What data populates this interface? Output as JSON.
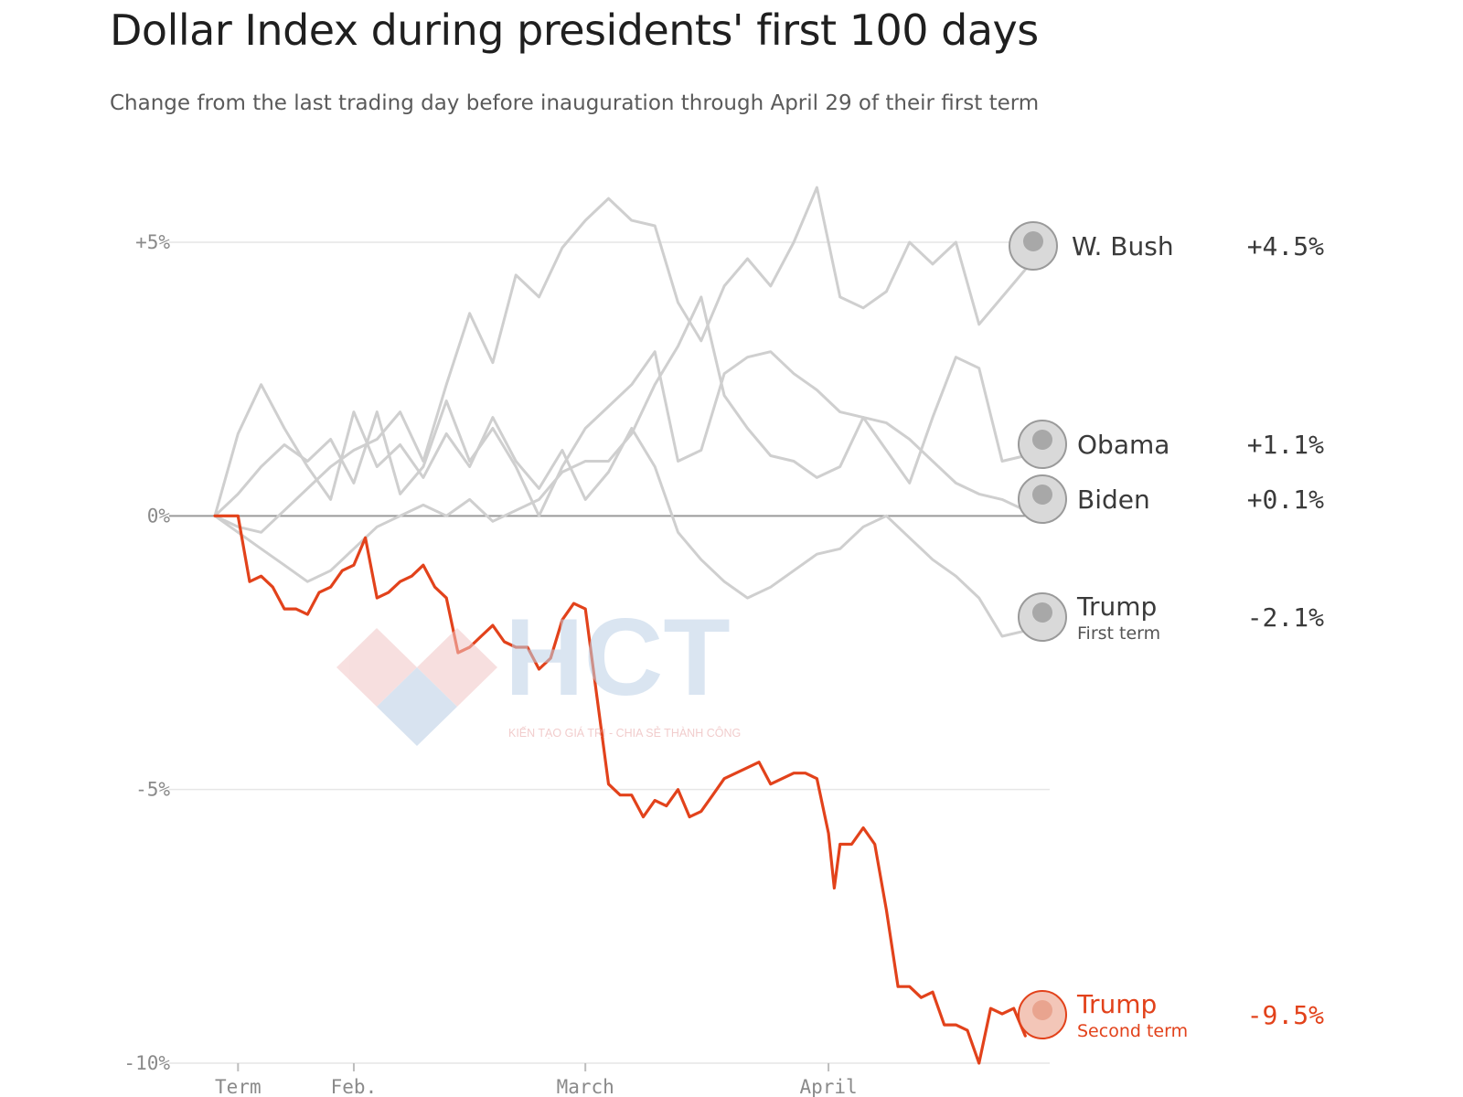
{
  "chart_data": {
    "type": "line",
    "title": "Dollar Index during presidents' first 100 days",
    "subtitle": "Change from the last trading day before inauguration through April 29 of their first term",
    "x_unit": "trading days since inauguration",
    "x_range": [
      -1,
      70
    ],
    "ylim": [
      -10,
      6
    ],
    "y_ticks": [
      {
        "value": 5,
        "label": "+5%"
      },
      {
        "value": 0,
        "label": "0%"
      },
      {
        "value": -5,
        "label": "-5%"
      },
      {
        "value": -10,
        "label": "-10%"
      }
    ],
    "x_ticks": [
      {
        "value": 1,
        "label": "Term"
      },
      {
        "value": 11,
        "label": "Feb."
      },
      {
        "value": 31,
        "label": "March"
      },
      {
        "value": 52,
        "label": "April"
      }
    ],
    "grid": true,
    "series": [
      {
        "name": "W. Bush",
        "sub": "",
        "value_label": "+4.5%",
        "highlight": false,
        "color": "#cfcfcf",
        "points": [
          [
            -1,
            0
          ],
          [
            1,
            -0.2
          ],
          [
            3,
            -0.3
          ],
          [
            5,
            0.1
          ],
          [
            7,
            0.5
          ],
          [
            9,
            0.9
          ],
          [
            11,
            1.2
          ],
          [
            13,
            1.4
          ],
          [
            15,
            1.9
          ],
          [
            17,
            1.0
          ],
          [
            19,
            2.4
          ],
          [
            21,
            3.7
          ],
          [
            23,
            2.8
          ],
          [
            25,
            4.4
          ],
          [
            27,
            4.0
          ],
          [
            29,
            4.9
          ],
          [
            31,
            5.4
          ],
          [
            33,
            5.8
          ],
          [
            35,
            5.4
          ],
          [
            37,
            5.3
          ],
          [
            39,
            3.9
          ],
          [
            41,
            3.2
          ],
          [
            43,
            4.2
          ],
          [
            45,
            4.7
          ],
          [
            47,
            4.2
          ],
          [
            49,
            5.0
          ],
          [
            51,
            6.0
          ],
          [
            53,
            4.0
          ],
          [
            55,
            3.8
          ],
          [
            57,
            4.1
          ],
          [
            59,
            5.0
          ],
          [
            61,
            4.6
          ],
          [
            63,
            5.0
          ],
          [
            65,
            3.5
          ],
          [
            67,
            4.0
          ],
          [
            69,
            4.5
          ]
        ]
      },
      {
        "name": "Obama",
        "sub": "",
        "value_label": "+1.1%",
        "highlight": false,
        "color": "#cfcfcf",
        "points": [
          [
            -1,
            0
          ],
          [
            1,
            0.4
          ],
          [
            3,
            0.9
          ],
          [
            5,
            1.3
          ],
          [
            7,
            1.0
          ],
          [
            9,
            1.4
          ],
          [
            11,
            0.6
          ],
          [
            13,
            1.9
          ],
          [
            15,
            0.4
          ],
          [
            17,
            0.9
          ],
          [
            19,
            2.1
          ],
          [
            21,
            1.0
          ],
          [
            23,
            1.6
          ],
          [
            25,
            0.9
          ],
          [
            27,
            0.0
          ],
          [
            29,
            0.9
          ],
          [
            31,
            1.6
          ],
          [
            33,
            2.0
          ],
          [
            35,
            2.4
          ],
          [
            37,
            3.0
          ],
          [
            39,
            1.0
          ],
          [
            41,
            1.2
          ],
          [
            43,
            2.6
          ],
          [
            45,
            2.9
          ],
          [
            47,
            3.0
          ],
          [
            49,
            2.6
          ],
          [
            51,
            2.3
          ],
          [
            53,
            1.9
          ],
          [
            55,
            1.8
          ],
          [
            57,
            1.2
          ],
          [
            59,
            0.6
          ],
          [
            61,
            1.8
          ],
          [
            63,
            2.9
          ],
          [
            65,
            2.7
          ],
          [
            67,
            1.0
          ],
          [
            69,
            1.1
          ]
        ]
      },
      {
        "name": "Biden",
        "sub": "",
        "value_label": "+0.1%",
        "highlight": false,
        "color": "#cfcfcf",
        "points": [
          [
            -1,
            0
          ],
          [
            1,
            -0.3
          ],
          [
            3,
            -0.6
          ],
          [
            5,
            -0.9
          ],
          [
            7,
            -1.2
          ],
          [
            9,
            -1.0
          ],
          [
            11,
            -0.6
          ],
          [
            13,
            -0.2
          ],
          [
            15,
            0.0
          ],
          [
            17,
            0.2
          ],
          [
            19,
            0.0
          ],
          [
            21,
            0.3
          ],
          [
            23,
            -0.1
          ],
          [
            25,
            0.1
          ],
          [
            27,
            0.3
          ],
          [
            29,
            0.8
          ],
          [
            31,
            1.0
          ],
          [
            33,
            1.0
          ],
          [
            35,
            1.5
          ],
          [
            37,
            2.4
          ],
          [
            39,
            3.1
          ],
          [
            41,
            4.0
          ],
          [
            43,
            2.2
          ],
          [
            45,
            1.6
          ],
          [
            47,
            1.1
          ],
          [
            49,
            1.0
          ],
          [
            51,
            0.7
          ],
          [
            53,
            0.9
          ],
          [
            55,
            1.8
          ],
          [
            57,
            1.7
          ],
          [
            59,
            1.4
          ],
          [
            61,
            1.0
          ],
          [
            63,
            0.6
          ],
          [
            65,
            0.4
          ],
          [
            67,
            0.3
          ],
          [
            69,
            0.1
          ]
        ]
      },
      {
        "name": "Trump",
        "sub": "First term",
        "value_label": "-2.1%",
        "highlight": false,
        "color": "#cfcfcf",
        "points": [
          [
            -1,
            0
          ],
          [
            1,
            1.5
          ],
          [
            3,
            2.4
          ],
          [
            5,
            1.6
          ],
          [
            7,
            0.9
          ],
          [
            9,
            0.3
          ],
          [
            11,
            1.9
          ],
          [
            13,
            0.9
          ],
          [
            15,
            1.3
          ],
          [
            17,
            0.7
          ],
          [
            19,
            1.5
          ],
          [
            21,
            0.9
          ],
          [
            23,
            1.8
          ],
          [
            25,
            1.0
          ],
          [
            27,
            0.5
          ],
          [
            29,
            1.2
          ],
          [
            31,
            0.3
          ],
          [
            33,
            0.8
          ],
          [
            35,
            1.6
          ],
          [
            37,
            0.9
          ],
          [
            39,
            -0.3
          ],
          [
            41,
            -0.8
          ],
          [
            43,
            -1.2
          ],
          [
            45,
            -1.5
          ],
          [
            47,
            -1.3
          ],
          [
            49,
            -1.0
          ],
          [
            51,
            -0.7
          ],
          [
            53,
            -0.6
          ],
          [
            55,
            -0.2
          ],
          [
            57,
            0.0
          ],
          [
            59,
            -0.4
          ],
          [
            61,
            -0.8
          ],
          [
            63,
            -1.1
          ],
          [
            65,
            -1.5
          ],
          [
            67,
            -2.2
          ],
          [
            69,
            -2.1
          ]
        ]
      },
      {
        "name": "Trump",
        "sub": "Second term",
        "value_label": "-9.5%",
        "highlight": true,
        "color": "#e2421b",
        "points": [
          [
            -1,
            0
          ],
          [
            1,
            0.0
          ],
          [
            2,
            -1.2
          ],
          [
            3,
            -1.1
          ],
          [
            4,
            -1.3
          ],
          [
            5,
            -1.7
          ],
          [
            6,
            -1.7
          ],
          [
            7,
            -1.8
          ],
          [
            8,
            -1.4
          ],
          [
            9,
            -1.3
          ],
          [
            10,
            -1.0
          ],
          [
            11,
            -0.9
          ],
          [
            12,
            -0.4
          ],
          [
            13,
            -1.5
          ],
          [
            14,
            -1.4
          ],
          [
            15,
            -1.2
          ],
          [
            16,
            -1.1
          ],
          [
            17,
            -0.9
          ],
          [
            18,
            -1.3
          ],
          [
            19,
            -1.5
          ],
          [
            20,
            -2.5
          ],
          [
            21,
            -2.4
          ],
          [
            22,
            -2.2
          ],
          [
            23,
            -2.0
          ],
          [
            24,
            -2.3
          ],
          [
            25,
            -2.4
          ],
          [
            26,
            -2.4
          ],
          [
            27,
            -2.8
          ],
          [
            28,
            -2.6
          ],
          [
            29,
            -1.9
          ],
          [
            30,
            -1.6
          ],
          [
            31,
            -1.7
          ],
          [
            32,
            -3.3
          ],
          [
            33,
            -4.9
          ],
          [
            34,
            -5.1
          ],
          [
            35,
            -5.1
          ],
          [
            36,
            -5.5
          ],
          [
            37,
            -5.2
          ],
          [
            38,
            -5.3
          ],
          [
            39,
            -5.0
          ],
          [
            40,
            -5.5
          ],
          [
            41,
            -5.4
          ],
          [
            42,
            -5.1
          ],
          [
            43,
            -4.8
          ],
          [
            44,
            -4.7
          ],
          [
            45,
            -4.6
          ],
          [
            46,
            -4.5
          ],
          [
            47,
            -4.9
          ],
          [
            48,
            -4.8
          ],
          [
            49,
            -4.7
          ],
          [
            50,
            -4.7
          ],
          [
            51,
            -4.8
          ],
          [
            52,
            -5.8
          ],
          [
            52.5,
            -6.8
          ],
          [
            53,
            -6.0
          ],
          [
            54,
            -6.0
          ],
          [
            55,
            -5.7
          ],
          [
            56,
            -6.0
          ],
          [
            57,
            -7.2
          ],
          [
            58,
            -8.6
          ],
          [
            59,
            -8.6
          ],
          [
            60,
            -8.8
          ],
          [
            61,
            -8.7
          ],
          [
            62,
            -9.3
          ],
          [
            63,
            -9.3
          ],
          [
            64,
            -9.4
          ],
          [
            65,
            -10.0
          ],
          [
            66,
            -9.0
          ],
          [
            67,
            -9.1
          ],
          [
            68,
            -9.0
          ],
          [
            69,
            -9.5
          ]
        ]
      }
    ]
  },
  "watermark": {
    "brand": "HCT",
    "tagline": "KIẾN TẠO GIÁ TRỊ - CHIA SẺ THÀNH CÔNG"
  }
}
